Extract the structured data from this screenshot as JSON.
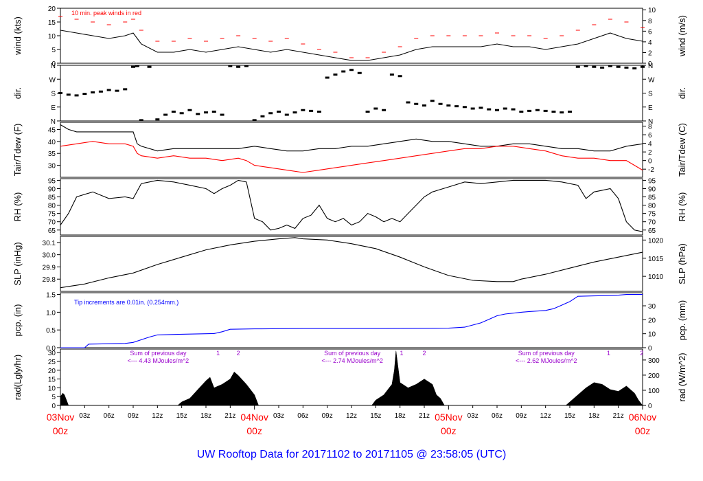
{
  "colors": {
    "black": "#000000",
    "red": "#ff0000",
    "blue": "#0000ff",
    "purple": "#9900cc",
    "frame": "#000000"
  },
  "title": "UW Rooftop Data for 20171102  to  20171105 @ 23:58:05  (UTC)",
  "x_axis": {
    "hours_total": 72,
    "hour_ticks": [
      "03z",
      "06z",
      "09z",
      "12z",
      "15z",
      "18z",
      "21z",
      "03z",
      "06z",
      "09z",
      "12z",
      "15z",
      "18z",
      "21z",
      "03z",
      "06z",
      "09z",
      "12z",
      "15z",
      "18z",
      "21z"
    ],
    "hour_tick_hours": [
      3,
      6,
      9,
      12,
      15,
      18,
      21,
      27,
      30,
      33,
      36,
      39,
      42,
      45,
      51,
      54,
      57,
      60,
      63,
      66,
      69
    ],
    "day_labels": [
      {
        "date": "03Nov",
        "time": "00z",
        "hour": 0
      },
      {
        "date": "04Nov",
        "time": "00z",
        "hour": 24
      },
      {
        "date": "05Nov",
        "time": "00z",
        "hour": 48
      },
      {
        "date": "06Nov",
        "time": "00z",
        "hour": 72
      }
    ]
  },
  "chart_data": [
    {
      "id": "wind",
      "type": "line",
      "ylabel": "wind (kts)",
      "ylabel_right": "wind (m/s)",
      "ylim": [
        0,
        20
      ],
      "yticks": [
        0,
        5,
        10,
        15,
        20
      ],
      "right_ticks": [
        "0",
        "2",
        "4",
        "6",
        "8",
        "10"
      ],
      "right_tick_values": [
        0,
        3.89,
        7.78,
        11.66,
        15.55,
        19.44
      ],
      "annotation": "10 min. peak winds in red",
      "series": [
        {
          "name": "wind speed",
          "color": "black",
          "x": [
            0,
            2,
            4,
            6,
            8,
            9,
            10,
            12,
            14,
            16,
            18,
            20,
            22,
            24,
            26,
            28,
            30,
            32,
            34,
            36,
            38,
            40,
            42,
            44,
            46,
            48,
            50,
            52,
            54,
            56,
            58,
            60,
            62,
            64,
            66,
            68,
            70,
            72
          ],
          "y": [
            12,
            11,
            10,
            9,
            10,
            11,
            7,
            4,
            4,
            5,
            4,
            5,
            6,
            5,
            4,
            5,
            4,
            3,
            2,
            1,
            1,
            2,
            3,
            5,
            6,
            6,
            6,
            6,
            7,
            6,
            6,
            5,
            6,
            7,
            9,
            11,
            9,
            8
          ]
        },
        {
          "name": "10 min peak",
          "color": "red",
          "x": [
            0,
            2,
            4,
            6,
            8,
            9,
            10,
            12,
            14,
            16,
            18,
            20,
            22,
            24,
            26,
            28,
            30,
            32,
            34,
            36,
            38,
            40,
            42,
            44,
            46,
            48,
            50,
            52,
            54,
            56,
            58,
            60,
            62,
            64,
            66,
            68,
            70,
            72
          ],
          "y": [
            17,
            16,
            15,
            14,
            15,
            16,
            12,
            8,
            8,
            9,
            8,
            9,
            10,
            9,
            8,
            9,
            7,
            5,
            4,
            2,
            2,
            4,
            6,
            9,
            10,
            10,
            10,
            10,
            11,
            10,
            10,
            9,
            10,
            12,
            14,
            16,
            15,
            13
          ]
        }
      ]
    },
    {
      "id": "dir",
      "type": "scatter",
      "ylabel": "dir.",
      "ylim": [
        0,
        360
      ],
      "ytick_labels": [
        "N",
        "E",
        "S",
        "W",
        "N"
      ],
      "ytick_values": [
        0,
        90,
        180,
        270,
        360
      ],
      "series": [
        {
          "name": "wind direction",
          "color": "black",
          "x": [
            0,
            1,
            2,
            3,
            4,
            5,
            6,
            7,
            8,
            9,
            9.5,
            10,
            11,
            12,
            13,
            14,
            15,
            16,
            17,
            18,
            19,
            20,
            21,
            22,
            23,
            24,
            25,
            26,
            27,
            28,
            29,
            30,
            31,
            32,
            33,
            34,
            35,
            36,
            37,
            38,
            39,
            40,
            41,
            42,
            43,
            44,
            45,
            46,
            47,
            48,
            49,
            50,
            51,
            52,
            53,
            54,
            55,
            56,
            57,
            58,
            59,
            60,
            61,
            62,
            63,
            64,
            65,
            66,
            67,
            68,
            69,
            70,
            71,
            72
          ],
          "y": [
            180,
            170,
            165,
            175,
            185,
            190,
            200,
            195,
            205,
            350,
            355,
            5,
            350,
            10,
            40,
            60,
            50,
            70,
            45,
            55,
            60,
            40,
            355,
            350,
            355,
            5,
            30,
            50,
            60,
            40,
            55,
            70,
            65,
            60,
            280,
            300,
            320,
            330,
            310,
            60,
            80,
            70,
            300,
            290,
            120,
            110,
            100,
            130,
            110,
            100,
            95,
            90,
            80,
            85,
            75,
            70,
            80,
            75,
            60,
            65,
            70,
            65,
            60,
            55,
            60,
            350,
            355,
            350,
            345,
            355,
            350,
            345,
            340,
            350
          ]
        }
      ]
    },
    {
      "id": "temp",
      "type": "line",
      "ylabel": "Tair/Tdew (F)",
      "ylabel_right": "Tair/Tdew (C)",
      "ylim": [
        25,
        48
      ],
      "yticks": [
        30,
        35,
        40,
        45
      ],
      "right_ticks": [
        "-2",
        "0",
        "2",
        "4",
        "6",
        "8"
      ],
      "right_tick_values": [
        28.4,
        32,
        35.6,
        39.2,
        42.8,
        46.4
      ],
      "series": [
        {
          "name": "Tair",
          "color": "black",
          "x": [
            0,
            1,
            2,
            4,
            6,
            8,
            9,
            9.5,
            10,
            12,
            14,
            16,
            18,
            20,
            22,
            24,
            26,
            28,
            30,
            32,
            34,
            36,
            38,
            40,
            42,
            44,
            46,
            48,
            50,
            52,
            54,
            56,
            58,
            60,
            62,
            64,
            66,
            68,
            70,
            72
          ],
          "y": [
            47,
            45,
            44,
            44,
            44,
            44,
            44,
            39,
            38,
            36,
            37,
            37,
            37,
            37,
            37,
            38,
            37,
            36,
            36,
            37,
            37,
            38,
            38,
            39,
            40,
            41,
            40,
            40,
            39,
            38,
            38,
            39,
            39,
            38,
            37,
            37,
            36,
            36,
            38,
            39
          ]
        },
        {
          "name": "Tdew",
          "color": "red",
          "x": [
            0,
            2,
            4,
            6,
            8,
            9,
            9.5,
            10,
            12,
            14,
            16,
            18,
            20,
            22,
            23,
            24,
            26,
            28,
            30,
            32,
            34,
            36,
            38,
            40,
            42,
            44,
            46,
            48,
            50,
            52,
            54,
            56,
            58,
            60,
            62,
            64,
            66,
            68,
            70,
            71,
            72
          ],
          "y": [
            38,
            39,
            40,
            39,
            39,
            38,
            35,
            34,
            33,
            34,
            33,
            33,
            32,
            33,
            32,
            30,
            29,
            28,
            27,
            28,
            29,
            30,
            31,
            32,
            33,
            34,
            35,
            36,
            37,
            37,
            38,
            38,
            37,
            36,
            34,
            33,
            33,
            32,
            32,
            30,
            28
          ]
        }
      ]
    },
    {
      "id": "rh",
      "type": "line",
      "ylabel": "RH (%)",
      "ylim": [
        62,
        96
      ],
      "yticks": [
        65,
        70,
        75,
        80,
        85,
        90,
        95
      ],
      "right_ticks": [
        "65",
        "70",
        "75",
        "80",
        "85",
        "90",
        "95"
      ],
      "right_tick_values": [
        65,
        70,
        75,
        80,
        85,
        90,
        95
      ],
      "series": [
        {
          "name": "RH",
          "color": "black",
          "x": [
            0,
            1,
            2,
            4,
            6,
            8,
            9,
            10,
            11,
            12,
            14,
            16,
            18,
            19,
            20,
            21,
            22,
            23,
            24,
            25,
            26,
            27,
            28,
            29,
            30,
            31,
            32,
            33,
            34,
            35,
            36,
            37,
            38,
            39,
            40,
            41,
            42,
            43,
            44,
            45,
            46,
            48,
            50,
            52,
            54,
            56,
            58,
            60,
            62,
            64,
            65,
            66,
            67,
            68,
            69,
            70,
            71,
            72
          ],
          "y": [
            68,
            75,
            85,
            88,
            84,
            85,
            84,
            93,
            94,
            95,
            94,
            92,
            90,
            87,
            90,
            92,
            95,
            94,
            72,
            70,
            65,
            66,
            68,
            66,
            72,
            74,
            80,
            72,
            70,
            72,
            68,
            70,
            75,
            73,
            70,
            72,
            70,
            75,
            80,
            85,
            88,
            91,
            94,
            93,
            94,
            95,
            95,
            95,
            94,
            92,
            84,
            88,
            89,
            90,
            84,
            70,
            65,
            64
          ]
        }
      ]
    },
    {
      "id": "slp",
      "type": "line",
      "ylabel": "SLP (inHg)",
      "ylabel_right": "SLP (hPa)",
      "ylim": [
        29.7,
        30.15
      ],
      "yticks": [
        29.8,
        29.9,
        30.0,
        30.1
      ],
      "ytick_labels": [
        "29.8",
        "29.9",
        "30.0",
        "30.1"
      ],
      "right_ticks": [
        "1010",
        "1015",
        "1020"
      ],
      "right_tick_values": [
        29.823,
        29.971,
        30.12
      ],
      "series": [
        {
          "name": "SLP",
          "color": "black",
          "x": [
            0,
            3,
            6,
            9,
            12,
            15,
            18,
            21,
            24,
            27,
            29,
            30,
            33,
            36,
            39,
            42,
            45,
            48,
            51,
            54,
            56,
            57,
            60,
            63,
            66,
            69,
            72
          ],
          "y": [
            29.73,
            29.76,
            29.81,
            29.85,
            29.92,
            29.98,
            30.04,
            30.08,
            30.11,
            30.13,
            30.14,
            30.13,
            30.12,
            30.09,
            30.05,
            29.98,
            29.9,
            29.83,
            29.79,
            29.78,
            29.78,
            29.8,
            29.84,
            29.89,
            29.94,
            29.98,
            30.02
          ]
        }
      ]
    },
    {
      "id": "pcp",
      "type": "line",
      "ylabel": "pcp. (in)",
      "ylabel_right": "pcp. (mm)",
      "ylim": [
        0,
        1.55
      ],
      "yticks": [
        0,
        0.5,
        1.0,
        1.5
      ],
      "ytick_labels": [
        "0.0",
        "0.5",
        "1.0",
        "1.5"
      ],
      "right_ticks": [
        "0",
        "10",
        "20",
        "30"
      ],
      "right_tick_values": [
        0,
        0.3937,
        0.7874,
        1.1811
      ],
      "annotation": "Tip increments are 0.01in. (0.254mm.)",
      "series": [
        {
          "name": "cumulative precipitation",
          "color": "blue",
          "x": [
            0,
            3,
            3.5,
            8,
            9,
            11,
            12,
            15,
            19,
            20,
            21,
            24,
            30,
            40,
            48,
            50,
            52,
            53,
            54,
            55,
            57,
            58,
            60,
            61,
            62,
            63,
            64,
            66,
            68,
            69,
            70,
            72
          ],
          "y": [
            0,
            0,
            0.1,
            0.12,
            0.15,
            0.3,
            0.36,
            0.38,
            0.4,
            0.45,
            0.52,
            0.53,
            0.54,
            0.54,
            0.55,
            0.58,
            0.7,
            0.8,
            0.9,
            0.95,
            1.0,
            1.02,
            1.05,
            1.1,
            1.2,
            1.3,
            1.45,
            1.46,
            1.47,
            1.48,
            1.5,
            1.5
          ]
        }
      ]
    },
    {
      "id": "rad",
      "type": "area",
      "ylabel": "rad(Lgly/hr)",
      "ylabel_right": "rad (W/m^2)",
      "ylim": [
        0,
        32
      ],
      "yticks": [
        0,
        5,
        10,
        15,
        20,
        25,
        30
      ],
      "right_ticks": [
        "0",
        "100",
        "200",
        "300"
      ],
      "right_tick_values": [
        0,
        8.6,
        17.2,
        25.8
      ],
      "annotations": [
        {
          "text": "Sum of previous day",
          "hour": 7
        },
        {
          "text": "<--- 4.43 MJoules/m^2",
          "hour": 7
        },
        {
          "text": "Sum of previous day",
          "hour": 31
        },
        {
          "text": "<--- 2.74 MJoules/m^2",
          "hour": 31
        },
        {
          "text": "Sum of previous day",
          "hour": 55
        },
        {
          "text": "<--- 2.62 MJoules/m^2",
          "hour": 55
        }
      ],
      "markers": [
        {
          "label": "1",
          "hour": 19.5
        },
        {
          "label": "2",
          "hour": 22
        },
        {
          "label": "1",
          "hour": 42.2
        },
        {
          "label": "2",
          "hour": 45
        },
        {
          "label": "1",
          "hour": 67.8
        },
        {
          "label": "2",
          "hour": 71.9
        }
      ],
      "series": [
        {
          "name": "solar radiation",
          "color": "black",
          "x": [
            0,
            0.3,
            0.5,
            1,
            14.5,
            15,
            16,
            17,
            18,
            18.5,
            19,
            20,
            21,
            21.5,
            22,
            23,
            24,
            24.5,
            38.5,
            39,
            40,
            40.5,
            41,
            41.3,
            41.5,
            42,
            43,
            44,
            45,
            46,
            46.5,
            47,
            47.5,
            48,
            62.5,
            63,
            64,
            65,
            66,
            67,
            68,
            69,
            70,
            71,
            71.5,
            72
          ],
          "y": [
            5,
            7,
            6,
            0,
            0,
            2,
            4,
            9,
            14,
            16,
            10,
            12,
            15,
            19,
            17,
            12,
            6,
            0,
            0,
            3,
            6,
            9,
            12,
            20,
            31,
            13,
            10,
            12,
            15,
            12,
            6,
            4,
            0,
            0,
            0,
            2,
            6,
            10,
            13,
            12,
            9,
            8,
            11,
            7,
            3,
            0
          ]
        }
      ]
    }
  ]
}
